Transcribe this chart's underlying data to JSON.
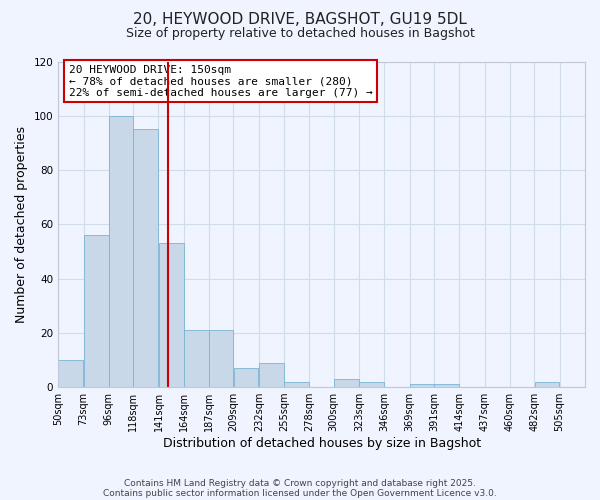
{
  "title": "20, HEYWOOD DRIVE, BAGSHOT, GU19 5DL",
  "subtitle": "Size of property relative to detached houses in Bagshot",
  "xlabel": "Distribution of detached houses by size in Bagshot",
  "ylabel": "Number of detached properties",
  "bar_color": "#c8d8e8",
  "bar_edge_color": "#7ab4d4",
  "bar_left_edges": [
    50,
    73,
    96,
    118,
    141,
    164,
    187,
    209,
    232,
    255,
    278,
    300,
    323,
    346,
    369,
    391,
    414,
    437,
    460,
    482
  ],
  "bar_widths": [
    23,
    23,
    22,
    23,
    23,
    23,
    22,
    23,
    23,
    23,
    22,
    23,
    23,
    23,
    22,
    23,
    23,
    23,
    22,
    23
  ],
  "bar_heights": [
    10,
    56,
    100,
    95,
    53,
    21,
    21,
    7,
    9,
    2,
    0,
    3,
    2,
    0,
    1,
    1,
    0,
    0,
    0,
    2
  ],
  "tick_labels": [
    "50sqm",
    "73sqm",
    "96sqm",
    "118sqm",
    "141sqm",
    "164sqm",
    "187sqm",
    "209sqm",
    "232sqm",
    "255sqm",
    "278sqm",
    "300sqm",
    "323sqm",
    "346sqm",
    "369sqm",
    "391sqm",
    "414sqm",
    "437sqm",
    "460sqm",
    "482sqm",
    "505sqm"
  ],
  "tick_positions": [
    50,
    73,
    96,
    118,
    141,
    164,
    187,
    209,
    232,
    255,
    278,
    300,
    323,
    346,
    369,
    391,
    414,
    437,
    460,
    482,
    505
  ],
  "vline_x": 150,
  "vline_color": "#cc0000",
  "annotation_box_text": "20 HEYWOOD DRIVE: 150sqm\n← 78% of detached houses are smaller (280)\n22% of semi-detached houses are larger (77) →",
  "ylim": [
    0,
    120
  ],
  "xlim": [
    50,
    528
  ],
  "yticks": [
    0,
    20,
    40,
    60,
    80,
    100,
    120
  ],
  "grid_color": "#d0dce8",
  "background_color": "#f0f4ff",
  "footer_line1": "Contains HM Land Registry data © Crown copyright and database right 2025.",
  "footer_line2": "Contains public sector information licensed under the Open Government Licence v3.0.",
  "title_fontsize": 11,
  "subtitle_fontsize": 9,
  "axis_label_fontsize": 9,
  "tick_fontsize": 7,
  "annotation_fontsize": 8,
  "footer_fontsize": 6.5
}
